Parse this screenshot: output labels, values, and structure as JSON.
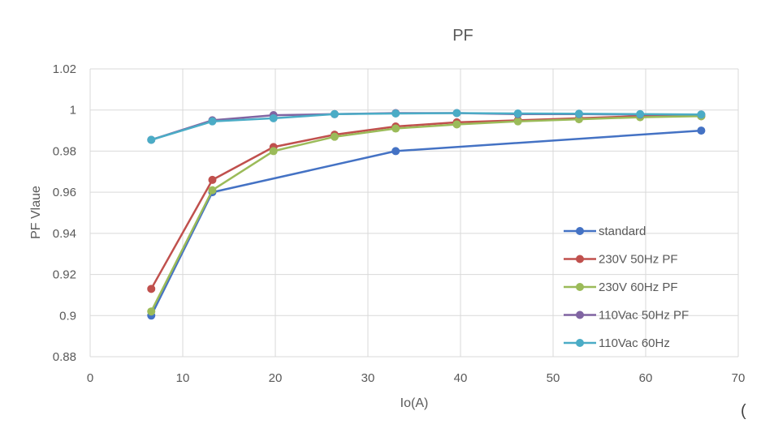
{
  "chart_data": {
    "type": "line",
    "title": "PF",
    "xlabel": "Io(A)",
    "ylabel": "PF Vlaue",
    "xlim": [
      0,
      70
    ],
    "ylim": [
      0.88,
      1.02
    ],
    "xticks": [
      "0",
      "10",
      "20",
      "30",
      "40",
      "50",
      "60",
      "70"
    ],
    "yticks": [
      "0.88",
      "0.9",
      "0.92",
      "0.94",
      "0.96",
      "0.98",
      "1",
      "1.02"
    ],
    "grid": true,
    "legend_position": "right",
    "series": [
      {
        "name": "standard",
        "color": "#4472C4",
        "x": [
          6.6,
          13.2,
          33,
          66
        ],
        "y": [
          0.9,
          0.96,
          0.98,
          0.99
        ]
      },
      {
        "name": "230V 50Hz PF",
        "color": "#C0504D",
        "x": [
          6.6,
          13.2,
          19.8,
          26.4,
          33,
          39.6,
          46.2,
          52.8,
          59.4,
          66
        ],
        "y": [
          0.913,
          0.966,
          0.982,
          0.988,
          0.992,
          0.994,
          0.995,
          0.996,
          0.997,
          0.997
        ]
      },
      {
        "name": "230V 60Hz PF",
        "color": "#9BBB59",
        "x": [
          6.6,
          13.2,
          19.8,
          26.4,
          33,
          39.6,
          46.2,
          52.8,
          59.4,
          66
        ],
        "y": [
          0.902,
          0.961,
          0.98,
          0.987,
          0.991,
          0.993,
          0.9945,
          0.9955,
          0.9965,
          0.997
        ]
      },
      {
        "name": "110Vac 50Hz PF",
        "color": "#8064A2",
        "x": [
          6.6,
          13.2,
          19.8,
          26.4,
          33,
          39.6,
          46.2,
          52.8,
          59.4,
          66
        ],
        "y": [
          0.9855,
          0.995,
          0.9975,
          0.998,
          0.9985,
          0.9985,
          0.998,
          0.998,
          0.9978,
          0.9978
        ]
      },
      {
        "name": "110Vac 60Hz",
        "color": "#4BACC6",
        "x": [
          6.6,
          13.2,
          19.8,
          26.4,
          33,
          39.6,
          46.2,
          52.8,
          59.4,
          66
        ],
        "y": [
          0.9855,
          0.9945,
          0.996,
          0.998,
          0.9983,
          0.9985,
          0.9983,
          0.9982,
          0.998,
          0.9978
        ]
      }
    ]
  },
  "corner_glyph": "("
}
